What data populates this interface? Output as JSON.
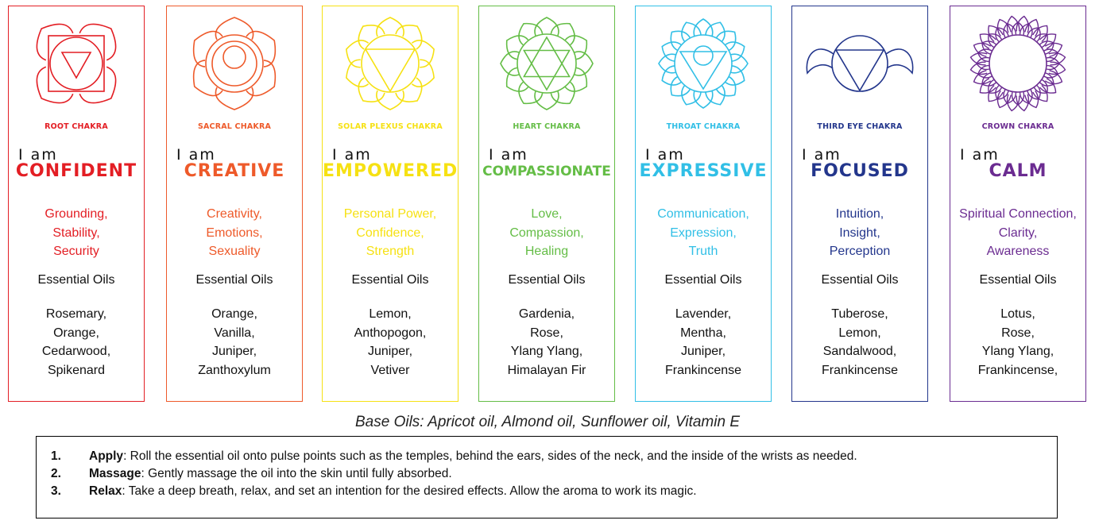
{
  "chakras": [
    {
      "name": "ROOT CHAKRA",
      "iam": "I am",
      "word": "CONFIDENT",
      "qualities": "Grounding,\nStability,\nSecurity",
      "oils_label": "Essential Oils",
      "oils": "Rosemary,\nOrange,\nCedarwood,\nSpikenard",
      "color": "#e31e24",
      "icon": "root-chakra-icon"
    },
    {
      "name": "SACRAL CHAKRA",
      "iam": "I am",
      "word": "CREATIVE",
      "qualities": "Creativity,\nEmotions,\nSexuality",
      "oils_label": "Essential Oils",
      "oils": "Orange,\nVanilla,\nJuniper,\nZanthoxylum",
      "color": "#ee5a2a",
      "icon": "sacral-chakra-icon"
    },
    {
      "name": "SOLAR PLEXUS CHAKRA",
      "iam": "I am",
      "word": "EMPOWERED",
      "qualities": "Personal Power,\nConfidence,\nStrength",
      "oils_label": "Essential Oils",
      "oils": "Lemon,\nAnthopogon,\nJuniper,\nVetiver",
      "color": "#f6e113",
      "icon": "solar-plexus-chakra-icon"
    },
    {
      "name": "HEART CHAKRA",
      "iam": "I am",
      "word": "COMPASSIONATE",
      "qualities": "Love,\nCompassion,\nHealing",
      "oils_label": "Essential Oils",
      "oils": "Gardenia,\nRose,\nYlang Ylang,\nHimalayan Fir",
      "color": "#64bd46",
      "icon": "heart-chakra-icon"
    },
    {
      "name": "THROAT CHAKRA",
      "iam": "I am",
      "word": "EXPRESSIVE",
      "qualities": "Communication,\nExpression,\nTruth",
      "oils_label": "Essential Oils",
      "oils": "Lavender,\nMentha,\nJuniper,\nFrankincense",
      "color": "#31bfe6",
      "icon": "throat-chakra-icon"
    },
    {
      "name": "THIRD EYE CHAKRA",
      "iam": "I am",
      "word": "FOCUSED",
      "qualities": "Intuition,\nInsight,\nPerception",
      "oils_label": "Essential Oils",
      "oils": "Tuberose,\nLemon,\nSandalwood,\nFrankincense",
      "color": "#23368c",
      "icon": "third-eye-chakra-icon"
    },
    {
      "name": "CROWN CHAKRA",
      "iam": "I am",
      "word": "CALM",
      "qualities": "Spiritual Connection,\nClarity,\nAwareness",
      "oils_label": "Essential Oils",
      "oils": "Lotus,\nRose,\nYlang Ylang,\nFrankincense,",
      "color": "#6b2c91",
      "icon": "crown-chakra-icon"
    }
  ],
  "base_oils": "Base Oils: Apricot oil, Almond oil, Sunflower oil, Vitamin E",
  "instructions": [
    {
      "num": "1.",
      "title": "Apply",
      "text": ": Roll the essential oil onto pulse points such as the temples, behind the ears, sides of the neck, and the inside of the wrists as needed."
    },
    {
      "num": "2.",
      "title": "Massage",
      "text": ": Gently massage the oil into the skin until fully absorbed."
    },
    {
      "num": "3.",
      "title": "Relax",
      "text": ": Take a deep breath, relax, and set an intention for the desired effects. Allow the aroma to work its magic."
    }
  ]
}
